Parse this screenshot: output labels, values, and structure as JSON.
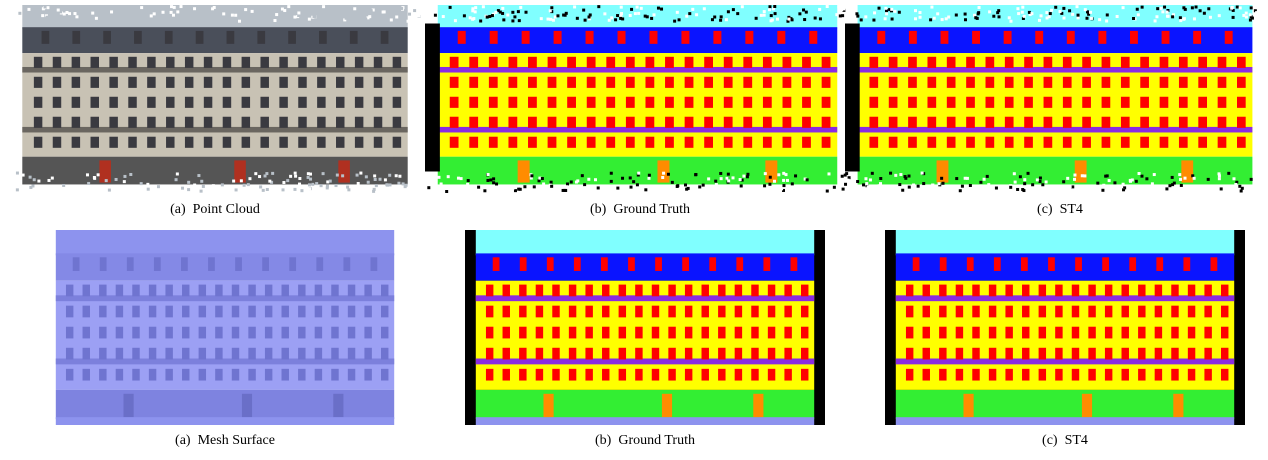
{
  "figures": [
    {
      "caption": "(a)  Point Cloud"
    },
    {
      "caption": "(b)  Ground Truth"
    },
    {
      "caption": "(c)  ST4"
    },
    {
      "caption": "(a)  Mesh Surface"
    },
    {
      "caption": "(b)  Ground Truth"
    },
    {
      "caption": "(c)  ST4"
    }
  ]
}
